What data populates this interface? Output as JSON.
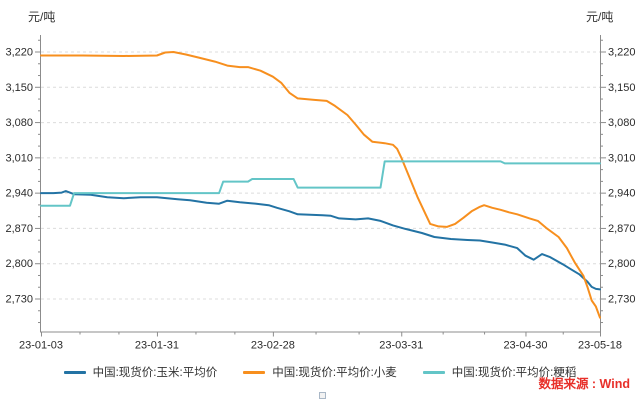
{
  "header": {
    "y_unit_left": "元/吨",
    "y_unit_right": "元/吨"
  },
  "source_note": "数据来源 : Wind",
  "colors": {
    "corn": "#2373a4",
    "wheat": "#f78f1e",
    "rice": "#63c5c7",
    "source_red": "#e8302a",
    "axis": "#8c8c8c",
    "grid": "#dcdcdc",
    "tick_text": "#2b2b2b"
  },
  "chart_data": {
    "type": "line",
    "title": "",
    "xlabel": "",
    "ylabel": "元/吨",
    "grid": "dashed horizontal gridlines at major y ticks",
    "legend_position": "bottom-center",
    "x_axis": {
      "kind": "date",
      "start_date": "2023-01-03",
      "end_date": "2023-05-18",
      "max_day_offset": 135,
      "tick_labels": [
        "23-01-03",
        "23-01-31",
        "23-02-28",
        "23-03-31",
        "23-04-30",
        "23-05-18"
      ],
      "tick_day_offsets": [
        0,
        28,
        56,
        87,
        117,
        135
      ],
      "minor_tick_day_offsets": [
        9.3,
        18.7,
        37.3,
        46.7,
        66.3,
        76.7,
        97,
        107,
        126
      ]
    },
    "y_axis": {
      "unit": "元/吨",
      "tick_values": [
        2730,
        2800,
        2870,
        2940,
        3010,
        3080,
        3150,
        3220
      ],
      "minor_tick_step": 23.333,
      "axis_bottom_value": 2664,
      "axis_top_value": 3253,
      "mirrored_right_axis": true
    },
    "series": [
      {
        "id": "corn",
        "name": "中国:现货价:玉米:平均价",
        "color": "#2373a4",
        "points_day_value": [
          [
            0,
            2939
          ],
          [
            3,
            2939
          ],
          [
            5,
            2940
          ],
          [
            6,
            2943
          ],
          [
            8,
            2937
          ],
          [
            12,
            2936
          ],
          [
            16,
            2931
          ],
          [
            20,
            2929
          ],
          [
            24,
            2931
          ],
          [
            28,
            2931
          ],
          [
            33,
            2927
          ],
          [
            36,
            2925
          ],
          [
            40,
            2920
          ],
          [
            43,
            2918
          ],
          [
            45,
            2924
          ],
          [
            48,
            2921
          ],
          [
            52,
            2918
          ],
          [
            55,
            2915
          ],
          [
            57,
            2910
          ],
          [
            60,
            2903
          ],
          [
            62,
            2897
          ],
          [
            68,
            2895
          ],
          [
            70,
            2894
          ],
          [
            72,
            2889
          ],
          [
            76,
            2887
          ],
          [
            79,
            2889
          ],
          [
            82,
            2884
          ],
          [
            85,
            2875
          ],
          [
            88,
            2868
          ],
          [
            92,
            2860
          ],
          [
            95,
            2852
          ],
          [
            99,
            2848
          ],
          [
            103,
            2846
          ],
          [
            106,
            2845
          ],
          [
            109,
            2841
          ],
          [
            112,
            2837
          ],
          [
            115,
            2830
          ],
          [
            117,
            2815
          ],
          [
            119,
            2807
          ],
          [
            121,
            2818
          ],
          [
            123,
            2812
          ],
          [
            126,
            2798
          ],
          [
            128,
            2788
          ],
          [
            130,
            2778
          ],
          [
            132,
            2763
          ],
          [
            133,
            2753
          ],
          [
            134,
            2749
          ],
          [
            135,
            2748
          ]
        ]
      },
      {
        "id": "wheat",
        "name": "中国:现货价:平均价:小麦",
        "color": "#f78f1e",
        "points_day_value": [
          [
            0,
            3212
          ],
          [
            10,
            3212
          ],
          [
            20,
            3211
          ],
          [
            28,
            3212
          ],
          [
            30,
            3218
          ],
          [
            32,
            3219
          ],
          [
            35,
            3214
          ],
          [
            38,
            3208
          ],
          [
            42,
            3200
          ],
          [
            45,
            3192
          ],
          [
            48,
            3189
          ],
          [
            50,
            3189
          ],
          [
            53,
            3182
          ],
          [
            56,
            3170
          ],
          [
            58,
            3158
          ],
          [
            60,
            3138
          ],
          [
            62,
            3127
          ],
          [
            66,
            3124
          ],
          [
            69,
            3122
          ],
          [
            71,
            3112
          ],
          [
            74,
            3094
          ],
          [
            76,
            3075
          ],
          [
            78,
            3055
          ],
          [
            80,
            3041
          ],
          [
            83,
            3038
          ],
          [
            85,
            3035
          ],
          [
            86,
            3027
          ],
          [
            87,
            3010
          ],
          [
            89,
            2970
          ],
          [
            91,
            2930
          ],
          [
            93,
            2895
          ],
          [
            94,
            2878
          ],
          [
            96,
            2873
          ],
          [
            98,
            2872
          ],
          [
            100,
            2878
          ],
          [
            102,
            2890
          ],
          [
            104,
            2903
          ],
          [
            106,
            2912
          ],
          [
            107,
            2915
          ],
          [
            109,
            2910
          ],
          [
            111,
            2906
          ],
          [
            113,
            2901
          ],
          [
            115,
            2897
          ],
          [
            118,
            2889
          ],
          [
            120,
            2884
          ],
          [
            122,
            2870
          ],
          [
            125,
            2852
          ],
          [
            127,
            2830
          ],
          [
            128,
            2815
          ],
          [
            129,
            2800
          ],
          [
            131,
            2775
          ],
          [
            132,
            2752
          ],
          [
            133,
            2726
          ],
          [
            134,
            2714
          ],
          [
            135,
            2692
          ]
        ]
      },
      {
        "id": "rice",
        "name": "中国:现货价:平均价:粳稻",
        "color": "#63c5c7",
        "points_day_value": [
          [
            0,
            2914
          ],
          [
            7,
            2914
          ],
          [
            8,
            2939
          ],
          [
            43,
            2939
          ],
          [
            44,
            2962
          ],
          [
            50,
            2962
          ],
          [
            51,
            2967
          ],
          [
            61,
            2967
          ],
          [
            62,
            2950
          ],
          [
            82,
            2950
          ],
          [
            83,
            3002
          ],
          [
            111,
            3002
          ],
          [
            112,
            2998
          ],
          [
            135,
            2998
          ]
        ]
      }
    ]
  }
}
